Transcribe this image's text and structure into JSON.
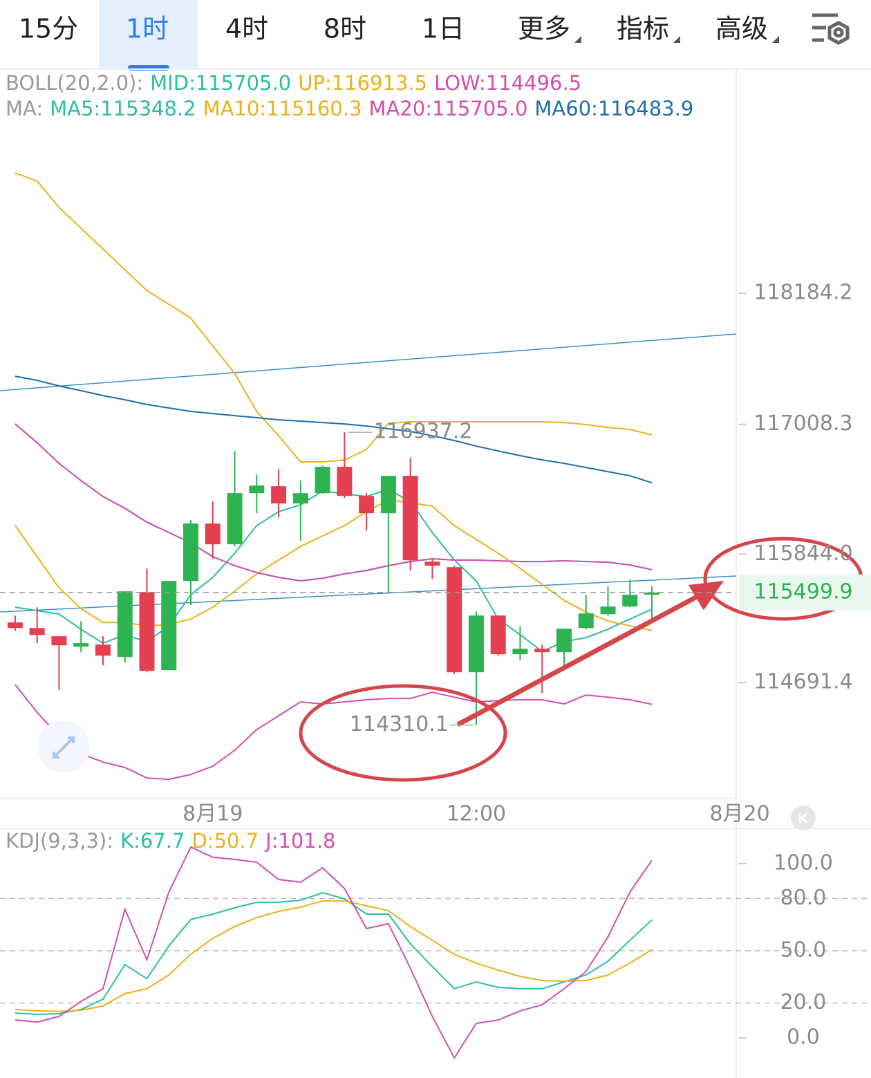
{
  "tabs": [
    "15分",
    "1时",
    "4时",
    "8时",
    "1日",
    "更多",
    "指标",
    "高级"
  ],
  "selected_tab": "1时",
  "chart_data": [
    {
      "type": "candlestick",
      "boll_label": "BOLL(20,2.0):",
      "ma_label": "MA:",
      "up_color": "#2eb351",
      "down_color": "#e5404f",
      "xlim": [
        -0.69,
        32.84
      ],
      "xticks": [
        {
          "value": 9,
          "label": "8月19"
        },
        {
          "value": 21,
          "label": "12:00"
        },
        {
          "value": 33,
          "label": "8月20"
        }
      ],
      "ylim": [
        113650,
        120195
      ],
      "yticks": [
        {
          "value": 114691.4,
          "label": "114691.4"
        },
        {
          "value": 115844,
          "label": "115844.0"
        },
        {
          "value": 117008.3,
          "label": "117008.3"
        },
        {
          "value": 118184.2,
          "label": "118184.2"
        }
      ],
      "open": [
        115231,
        115181,
        115107,
        115014,
        115032,
        114921,
        115504,
        114803,
        115603,
        116118,
        115932,
        116391,
        116453,
        116298,
        116391,
        116627,
        116366,
        116211,
        116546,
        115777,
        115727,
        114784,
        115293,
        114946,
        114995,
        114964,
        115181,
        115305,
        115374,
        115479
      ],
      "high": [
        115293,
        115367,
        115107,
        115243,
        115107,
        115510,
        115715,
        115603,
        116149,
        116317,
        116769,
        116559,
        116608,
        116503,
        116639,
        116937.2,
        116391,
        116546,
        116707,
        115802,
        115740,
        115330,
        115293,
        115200,
        115032,
        115175,
        115479,
        115554,
        115616,
        115554
      ],
      "low": [
        115156,
        115045,
        114623,
        114964,
        114846,
        114871,
        114784,
        114803,
        115386,
        115802,
        115913,
        116211,
        116174,
        115963,
        116385,
        116348,
        116056,
        115491,
        115696,
        115622,
        114766,
        114310.1,
        114933,
        114890,
        114598,
        114846,
        115169,
        115293,
        115367,
        115262
      ],
      "close": [
        115181,
        115119,
        115026,
        115045,
        114933,
        115510,
        114797,
        115603,
        116118,
        115932,
        116391,
        116459,
        116298,
        116391,
        116627,
        116366,
        116211,
        116546,
        115789,
        115740,
        114784,
        115293,
        114946,
        114995,
        114964,
        115175,
        115312,
        115374,
        115479,
        115499.9
      ],
      "series": [
        {
          "name": "MID:",
          "group": "BOLL",
          "color": "#2bbf9e",
          "value_label": "115705.0",
          "values": [
            117012,
            116844,
            116658,
            116503,
            116361,
            116255,
            116131,
            116038,
            115945,
            115821,
            115740,
            115678,
            115635,
            115604,
            115628,
            115666,
            115697,
            115740,
            115777,
            115802,
            115790,
            115790,
            115784,
            115777,
            115777,
            115784,
            115777,
            115771,
            115746,
            115705
          ]
        },
        {
          "name": "UP:",
          "group": "BOLL",
          "color": "#e9b21a",
          "values": [
            119264,
            119190,
            118954,
            118768,
            118582,
            118395,
            118209,
            118085,
            117961,
            117713,
            117465,
            117124,
            116906,
            116671,
            116671,
            116689,
            116782,
            117018,
            117031,
            117031,
            117031,
            117031,
            117031,
            117031,
            117031,
            117024,
            117006,
            116981,
            116962,
            116913.5
          ]
        },
        {
          "name": "LOW:",
          "group": "BOLL",
          "color": "#d24fb0",
          "values": [
            114673,
            114425,
            114208,
            114053,
            113978,
            113929,
            113835,
            113823,
            113867,
            113941,
            114084,
            114270,
            114394,
            114518,
            114499,
            114518,
            114537,
            114549,
            114549,
            114605,
            114561,
            114518,
            114530,
            114537,
            114537,
            114499,
            114580,
            114561,
            114537,
            114496.5
          ]
        },
        {
          "name": "MA5:",
          "group": "MA",
          "color": "#2bbf9e",
          "values": [
            115368,
            115337,
            115306,
            115169,
            115045,
            115120,
            115058,
            115200,
            115480,
            115635,
            115852,
            116100,
            116224,
            116286,
            116410,
            116385,
            116361,
            116423,
            116317,
            116038,
            115790,
            115604,
            115262,
            115120,
            114971,
            115058,
            115095,
            115169,
            115262,
            115348.2
          ]
        },
        {
          "name": "MA10:",
          "group": "MA",
          "color": "#e9b21a",
          "values": [
            116100,
            115821,
            115542,
            115355,
            115231,
            115231,
            115200,
            115213,
            115262,
            115368,
            115511,
            115666,
            115790,
            115914,
            116007,
            116100,
            116224,
            116330,
            116305,
            116274,
            116100,
            115976,
            115852,
            115715,
            115573,
            115430,
            115324,
            115244,
            115200,
            115160.3
          ]
        },
        {
          "name": "MA20:",
          "group": "MA",
          "color": "#d24fb0",
          "value_label": "115705.0",
          "values": [
            117012,
            116844,
            116658,
            116503,
            116361,
            116255,
            116131,
            116038,
            115945,
            115821,
            115740,
            115678,
            115635,
            115604,
            115628,
            115666,
            115697,
            115740,
            115777,
            115802,
            115790,
            115790,
            115784,
            115777,
            115777,
            115784,
            115777,
            115771,
            115746,
            115705
          ]
        },
        {
          "name": "MA60:",
          "group": "MA",
          "color": "#1f6fad",
          "values": [
            117440,
            117403,
            117353,
            117310,
            117266,
            117229,
            117186,
            117155,
            117124,
            117105,
            117086,
            117068,
            117049,
            117037,
            117024,
            117012,
            116993,
            116969,
            116944,
            116906,
            116863,
            116813,
            116770,
            116727,
            116689,
            116658,
            116621,
            116584,
            116547,
            116483.9
          ]
        }
      ]
    },
    {
      "type": "line",
      "title": "KDJ(9,3,3):",
      "grid": true,
      "xlim": [
        -0.69,
        32.84
      ],
      "ylim": [
        -23,
        119.4
      ],
      "yticks": [
        {
          "value": 0,
          "label": "0.0"
        },
        {
          "value": 20,
          "label": "20.0"
        },
        {
          "value": 50,
          "label": "50.0"
        },
        {
          "value": 80,
          "label": "80.0"
        },
        {
          "value": 100,
          "label": "100.0"
        }
      ],
      "series": [
        {
          "name": "K:",
          "color": "#2bbf9e",
          "values": [
            14.3,
            13.5,
            13.9,
            16.3,
            22.2,
            42,
            34,
            52.8,
            67.9,
            71,
            74.6,
            77.8,
            77.8,
            79,
            83.3,
            79.8,
            71,
            71,
            54,
            40.9,
            28.2,
            32.1,
            29,
            28.2,
            28.2,
            32.1,
            36.1,
            44,
            56,
            67.7
          ]
        },
        {
          "name": "D:",
          "color": "#e9b21a",
          "values": [
            16.3,
            15.5,
            15.1,
            15.9,
            18.3,
            25.4,
            28.2,
            36.1,
            48,
            57.1,
            63.9,
            69,
            72.6,
            75,
            78.6,
            78.6,
            75.8,
            73,
            63.9,
            56,
            48,
            42.9,
            38.9,
            35.3,
            32.9,
            32.5,
            32.9,
            36.1,
            42.9,
            50.7
          ]
        },
        {
          "name": "J:",
          "color": "#d24fb0",
          "values": [
            10.3,
            9.1,
            12.3,
            21,
            28.2,
            73.8,
            44.8,
            83.7,
            109.5,
            103.6,
            102.4,
            100.8,
            90.9,
            89.3,
            97.6,
            85.7,
            62.7,
            65.5,
            40.1,
            12.3,
            -11.5,
            8.3,
            10.3,
            15.5,
            19,
            28.2,
            38.1,
            57.9,
            83.7,
            101.8
          ]
        }
      ]
    }
  ]
}
